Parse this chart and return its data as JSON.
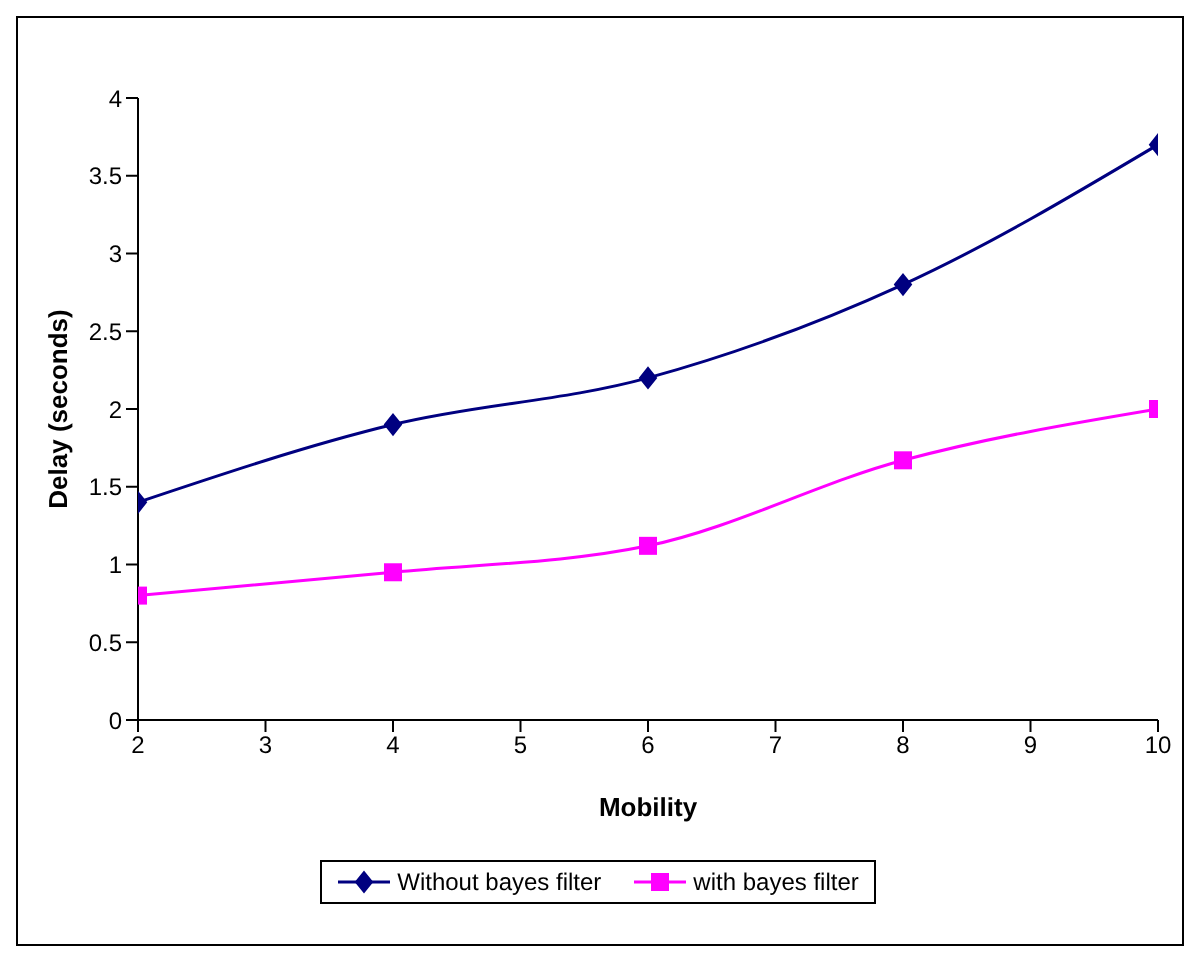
{
  "chart_data": {
    "type": "line",
    "xlabel": "Mobility",
    "ylabel": "Delay (seconds)",
    "x": [
      2,
      4,
      6,
      8,
      10
    ],
    "series": [
      {
        "name": "Without bayes filter",
        "color": "#000080",
        "values": [
          1.4,
          1.9,
          2.2,
          2.8,
          3.7
        ],
        "marker": "diamond"
      },
      {
        "name": "with bayes filter",
        "color": "#ff00ff",
        "values": [
          0.8,
          0.95,
          1.12,
          1.67,
          2.0
        ],
        "marker": "square"
      }
    ],
    "xlim": [
      2,
      10
    ],
    "xticks": [
      2,
      3,
      4,
      5,
      6,
      7,
      8,
      9,
      10
    ],
    "ylim": [
      0,
      4
    ],
    "yticks": [
      0,
      0.5,
      1,
      1.5,
      2,
      2.5,
      3,
      3.5,
      4
    ],
    "grid": false,
    "legend": "bottom",
    "line_style": "solid"
  }
}
